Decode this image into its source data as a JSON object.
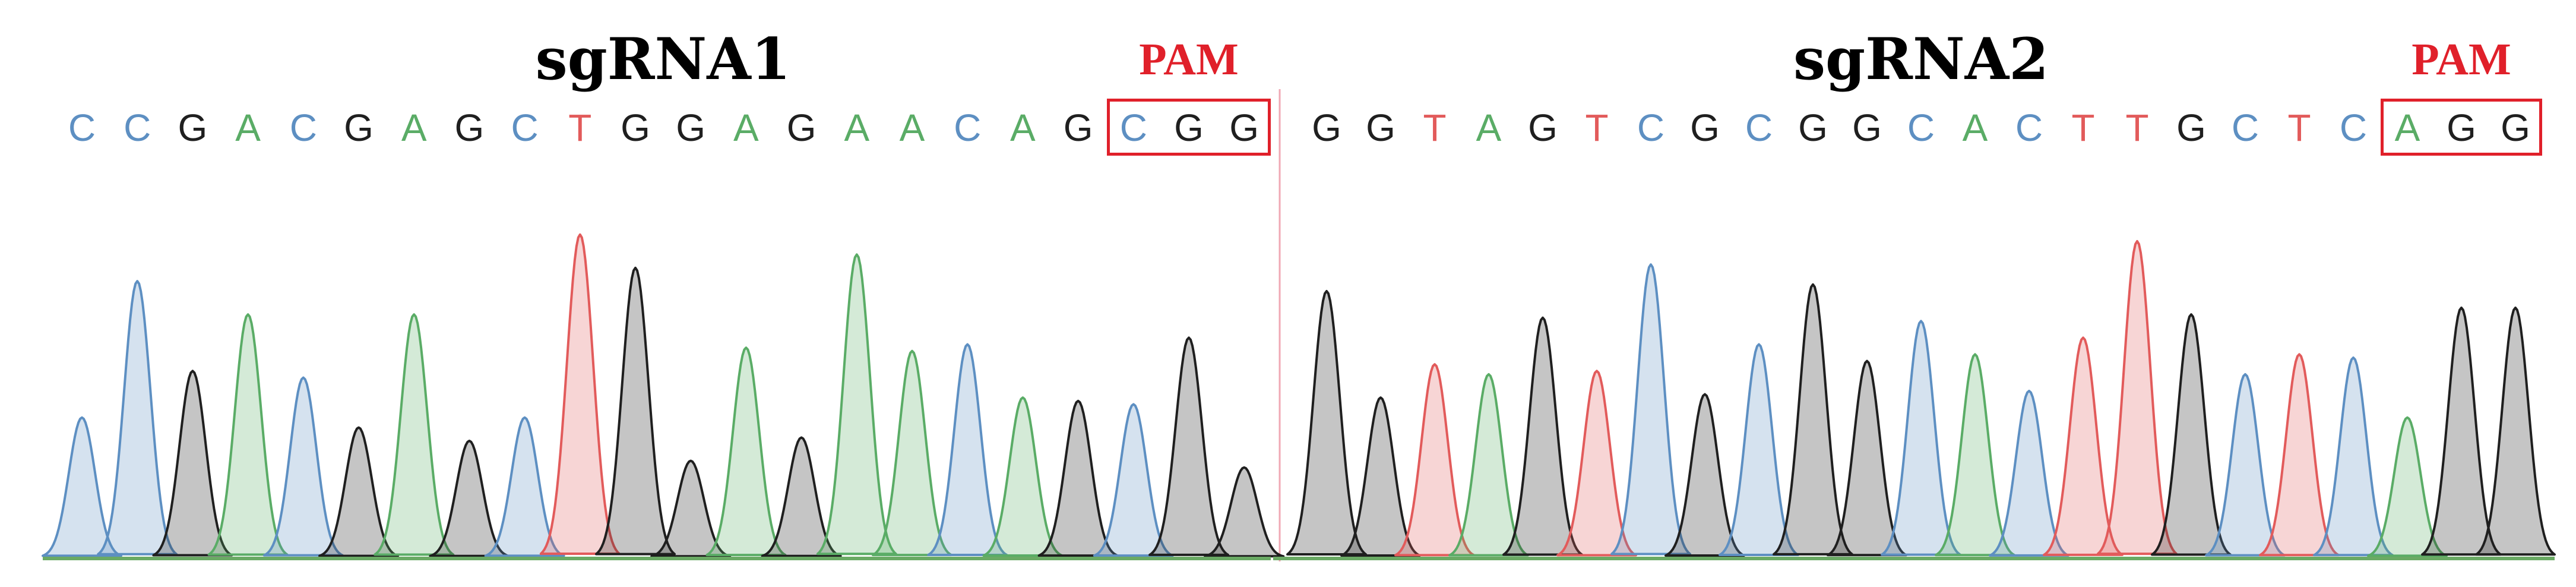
{
  "chart_data": {
    "type": "chromatogram",
    "colors": {
      "A": "#5aac66",
      "C": "#5d8fc2",
      "G": "#1f1f1f",
      "T": "#e25b5b",
      "pam_box": "#e0202a",
      "pam_text": "#e0202a",
      "divider": "#f0a8b4",
      "baseline": "#6aaa64"
    },
    "panels": [
      {
        "title": "sgRNA1",
        "pam_label": "PAM",
        "bases": [
          "C",
          "C",
          "G",
          "A",
          "C",
          "G",
          "A",
          "G",
          "C",
          "T",
          "G",
          "G",
          "A",
          "G",
          "A",
          "A",
          "C",
          "A",
          "G",
          "C",
          "G",
          "G"
        ],
        "pam_range": [
          19,
          21
        ],
        "peak_heights": [
          0.42,
          0.83,
          0.56,
          0.73,
          0.54,
          0.39,
          0.73,
          0.35,
          0.42,
          0.97,
          0.87,
          0.29,
          0.63,
          0.36,
          0.91,
          0.62,
          0.64,
          0.48,
          0.47,
          0.46,
          0.66,
          0.27
        ]
      },
      {
        "title": "sgRNA2",
        "pam_label": "PAM",
        "bases": [
          "G",
          "G",
          "T",
          "A",
          "G",
          "T",
          "C",
          "G",
          "C",
          "G",
          "G",
          "C",
          "A",
          "C",
          "T",
          "T",
          "G",
          "C",
          "T",
          "C",
          "A",
          "G",
          "G"
        ],
        "pam_range": [
          20,
          22
        ],
        "peak_heights": [
          0.8,
          0.48,
          0.58,
          0.55,
          0.72,
          0.56,
          0.88,
          0.49,
          0.64,
          0.82,
          0.59,
          0.71,
          0.61,
          0.5,
          0.66,
          0.95,
          0.73,
          0.55,
          0.61,
          0.6,
          0.42,
          0.75,
          0.75
        ]
      }
    ]
  }
}
